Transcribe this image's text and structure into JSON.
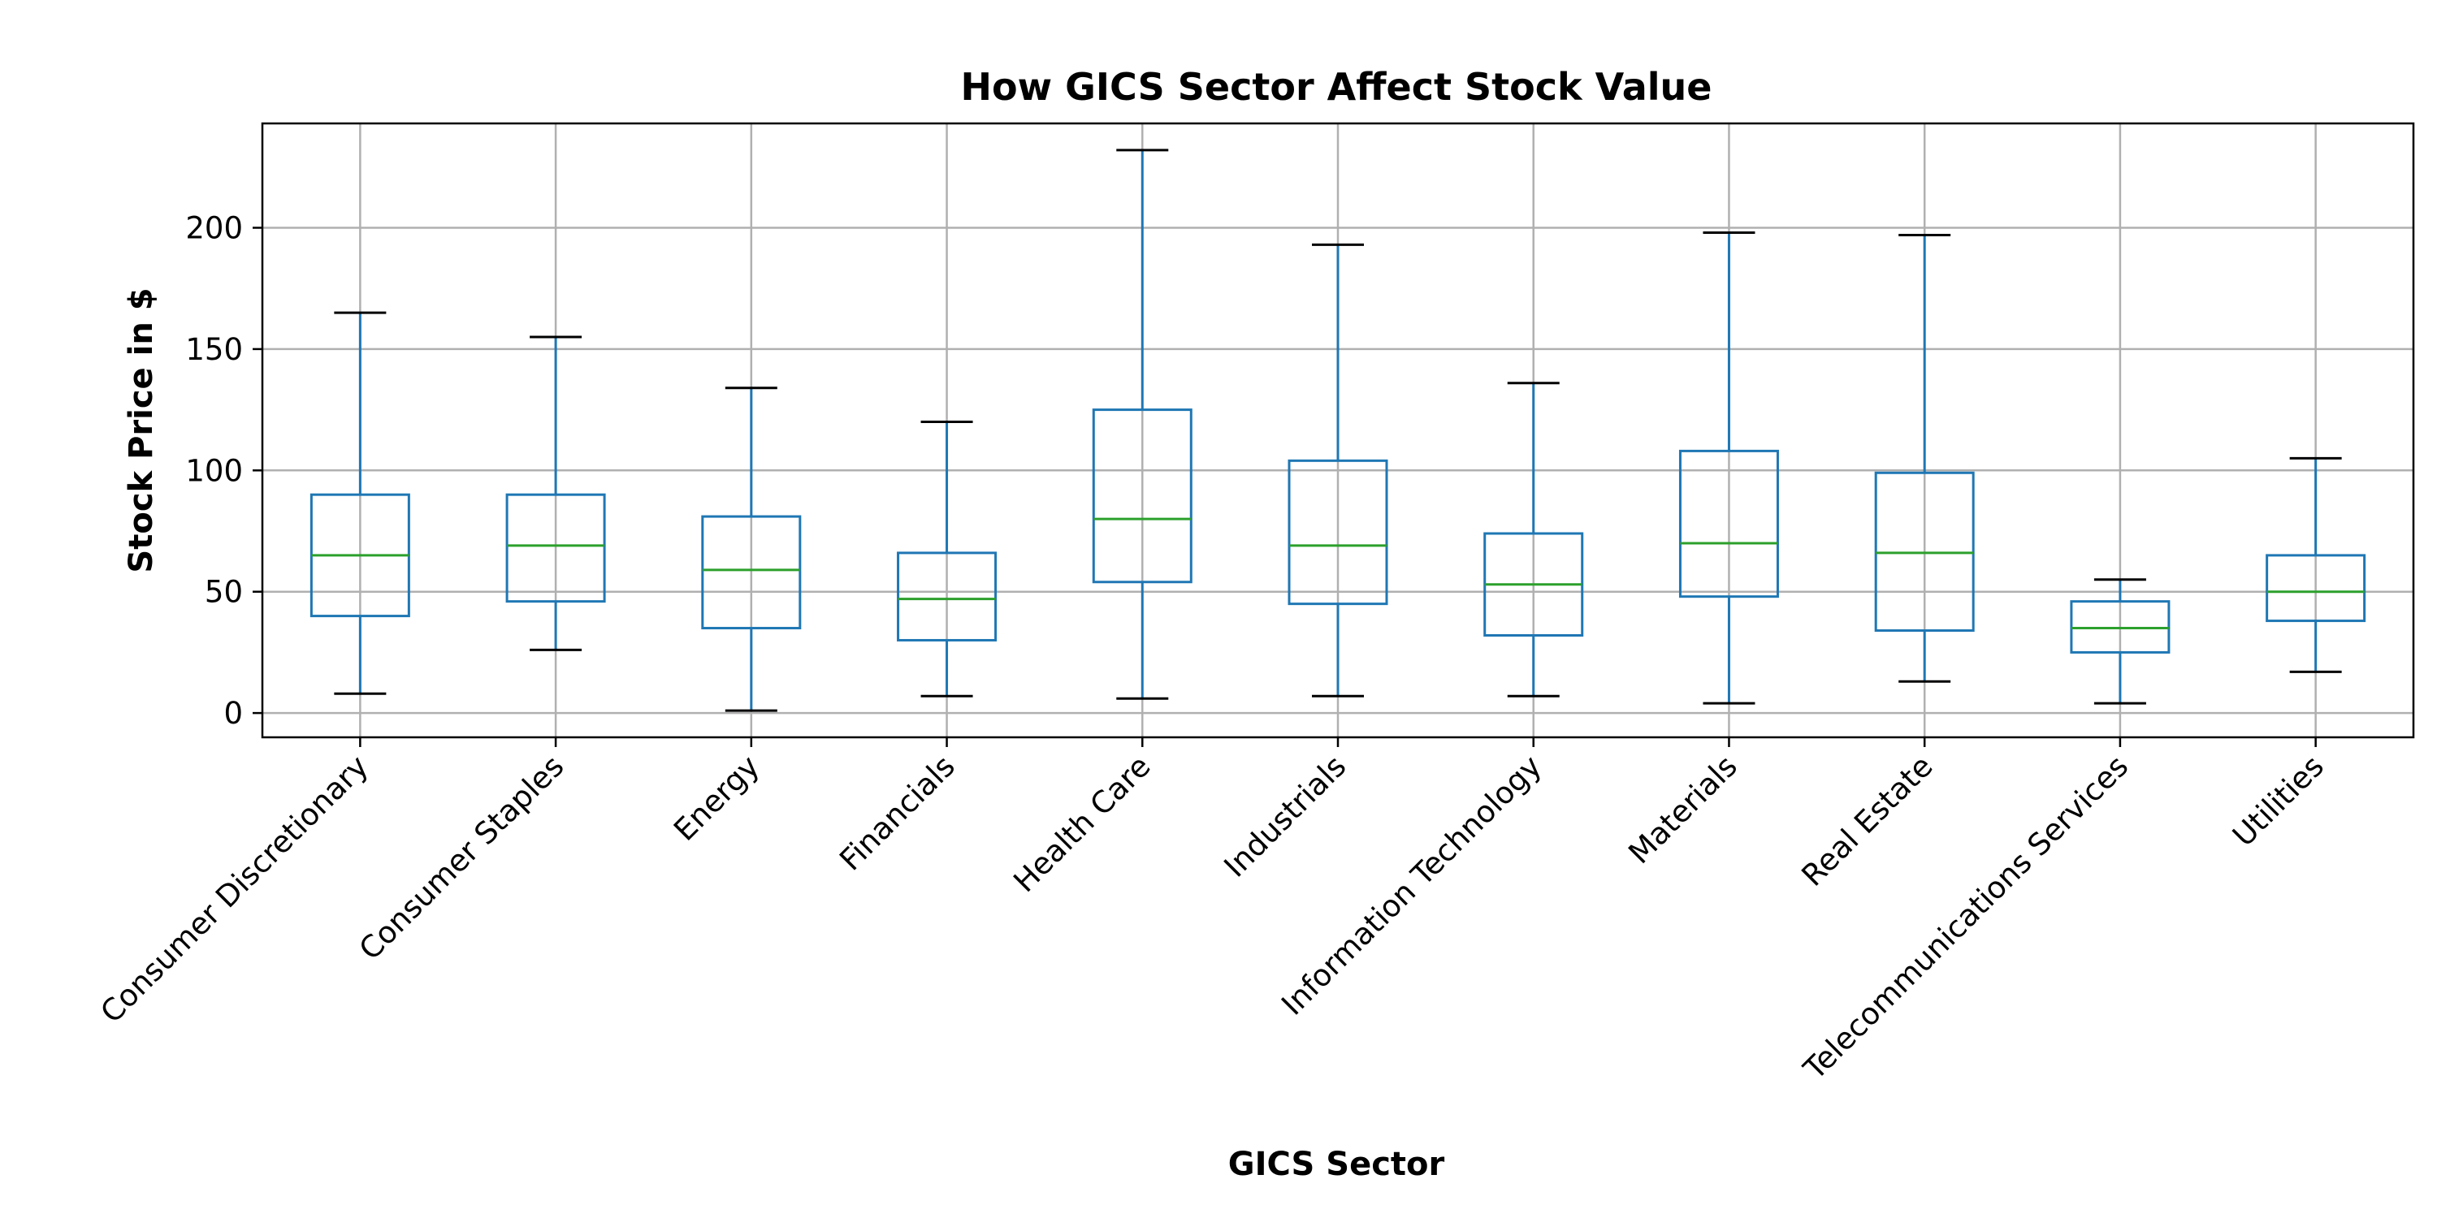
{
  "chart_data": {
    "type": "box",
    "title": "How GICS Sector Affect Stock Value",
    "xlabel": "GICS Sector",
    "ylabel": "Stock Price in $",
    "ylim": [
      -10,
      243
    ],
    "yticks": [
      0,
      50,
      100,
      150,
      200
    ],
    "grid": true,
    "colors": {
      "box": "#1f77b4",
      "median": "#2ca02c",
      "cap": "#000000",
      "grid": "#b0b0b0",
      "frame": "#000000"
    },
    "categories": [
      "Consumer Discretionary",
      "Consumer Staples",
      "Energy",
      "Financials",
      "Health Care",
      "Industrials",
      "Information Technology",
      "Materials",
      "Real Estate",
      "Telecommunications Services",
      "Utilities"
    ],
    "boxes": [
      {
        "whisker_low": 8,
        "q1": 40,
        "median": 65,
        "q3": 90,
        "whisker_high": 165
      },
      {
        "whisker_low": 26,
        "q1": 46,
        "median": 69,
        "q3": 90,
        "whisker_high": 155
      },
      {
        "whisker_low": 1,
        "q1": 35,
        "median": 59,
        "q3": 81,
        "whisker_high": 134
      },
      {
        "whisker_low": 7,
        "q1": 30,
        "median": 47,
        "q3": 66,
        "whisker_high": 120
      },
      {
        "whisker_low": 6,
        "q1": 54,
        "median": 80,
        "q3": 125,
        "whisker_high": 232
      },
      {
        "whisker_low": 7,
        "q1": 45,
        "median": 69,
        "q3": 104,
        "whisker_high": 193
      },
      {
        "whisker_low": 7,
        "q1": 32,
        "median": 53,
        "q3": 74,
        "whisker_high": 136
      },
      {
        "whisker_low": 4,
        "q1": 48,
        "median": 70,
        "q3": 108,
        "whisker_high": 198
      },
      {
        "whisker_low": 13,
        "q1": 34,
        "median": 66,
        "q3": 99,
        "whisker_high": 197
      },
      {
        "whisker_low": 4,
        "q1": 25,
        "median": 35,
        "q3": 46,
        "whisker_high": 55
      },
      {
        "whisker_low": 17,
        "q1": 38,
        "median": 50,
        "q3": 65,
        "whisker_high": 105
      }
    ]
  }
}
